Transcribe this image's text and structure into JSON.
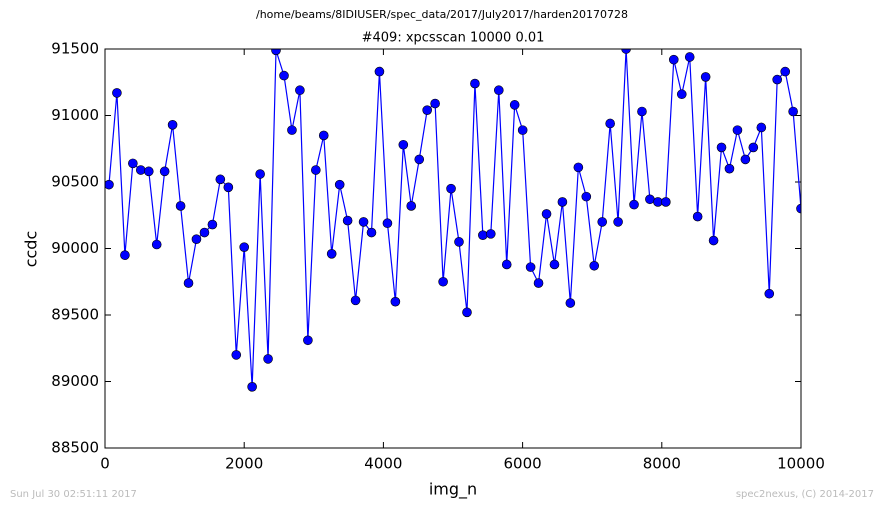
{
  "chart_data": {
    "type": "line",
    "suptitle": "/home/beams/8IDIUSER/spec_data/2017/July2017/harden20170728",
    "title": "#409: xpcsscan 10000 0.01",
    "x_label": "img_n",
    "y_label": "ccdc",
    "footer_left": "Sun Jul 30 02:51:11 2017",
    "footer_right": "spec2nexus, (C) 2014-2017",
    "xlim": [
      0,
      10000
    ],
    "xticks": [
      0,
      2000,
      4000,
      6000,
      8000,
      10000
    ],
    "ylim": [
      88500,
      91500
    ],
    "yticks": [
      88500,
      89000,
      89500,
      90000,
      90500,
      91000,
      91500
    ],
    "grid": false,
    "series": [
      {
        "color": "#0000ff",
        "x": [
          57,
          171,
          286,
          400,
          514,
          629,
          743,
          857,
          971,
          1086,
          1200,
          1314,
          1429,
          1543,
          1657,
          1772,
          1886,
          2000,
          2114,
          2229,
          2343,
          2457,
          2572,
          2686,
          2800,
          2915,
          3029,
          3143,
          3257,
          3372,
          3486,
          3600,
          3715,
          3829,
          3943,
          4058,
          4172,
          4286,
          4400,
          4515,
          4629,
          4743,
          4858,
          4972,
          5086,
          5201,
          5315,
          5429,
          5543,
          5658,
          5772,
          5886,
          6001,
          6115,
          6229,
          6344,
          6458,
          6572,
          6686,
          6801,
          6915,
          7029,
          7144,
          7258,
          7372,
          7487,
          7601,
          7715,
          7829,
          7944,
          8058,
          8172,
          8287,
          8401,
          8515,
          8630,
          8744,
          8858,
          8972,
          9087,
          9201,
          9315,
          9430,
          9544,
          9658,
          9773,
          9887,
          10000
        ],
        "values": [
          90480,
          91170,
          89950,
          90640,
          90590,
          90580,
          90030,
          90580,
          90930,
          90320,
          89740,
          90070,
          90120,
          90180,
          90520,
          90460,
          89200,
          90010,
          88960,
          90560,
          89170,
          91490,
          91300,
          90890,
          91190,
          89310,
          90590,
          90850,
          89960,
          90480,
          90210,
          89610,
          90200,
          90120,
          91330,
          90190,
          89600,
          90780,
          90320,
          90670,
          91040,
          91090,
          89750,
          90450,
          90050,
          89520,
          91240,
          90100,
          90110,
          91190,
          89880,
          91080,
          90890,
          89860,
          89740,
          90260,
          89880,
          90350,
          89590,
          90610,
          90390,
          89870,
          90200,
          90940,
          90200,
          91500,
          90330,
          91030,
          90370,
          90350,
          90350,
          91420,
          91160,
          91440,
          90240,
          91290,
          90060,
          90760,
          90600,
          90890,
          90670,
          90760,
          90910,
          89660,
          91270,
          91330,
          91030,
          90300
        ]
      }
    ]
  }
}
